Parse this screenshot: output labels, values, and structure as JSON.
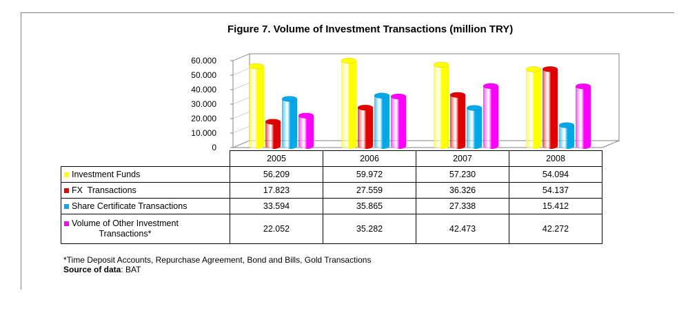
{
  "title": "Figure 7. Volume of Investment Transactions (million TRY)",
  "chart_data": {
    "type": "bar",
    "title": "Figure 7. Volume of Investment Transactions (million TRY)",
    "categories": [
      "2005",
      "2006",
      "2007",
      "2008"
    ],
    "ylim": [
      0,
      60000
    ],
    "yticks": [
      "0",
      "10.000",
      "20.000",
      "30.000",
      "40.000",
      "50.000",
      "60.000"
    ],
    "series": [
      {
        "name": "Investment Funds",
        "color": "#ffff00",
        "values": [
          56209,
          59972,
          57230,
          54094
        ],
        "labels": [
          "56.209",
          "59.972",
          "57.230",
          "54.094"
        ]
      },
      {
        "name": "FX  Transactions",
        "color": "#e00000",
        "values": [
          17823,
          27559,
          36326,
          54137
        ],
        "labels": [
          "17.823",
          "27.559",
          "36.326",
          "54.137"
        ]
      },
      {
        "name": "Share Certificate Transactions",
        "color": "#00a8e8",
        "values": [
          33594,
          35865,
          27338,
          15412
        ],
        "labels": [
          "33.594",
          "35.865",
          "27.338",
          "15.412"
        ]
      },
      {
        "name": "Volume of Other Investment Transactions*",
        "color": "#ff00ff",
        "values": [
          22052,
          35282,
          42473,
          42272
        ],
        "labels": [
          "22.052",
          "35.282",
          "42.473",
          "42.272"
        ]
      }
    ],
    "legend": "table-below",
    "grid": false
  },
  "table": {
    "row4_line1": "Volume of Other Investment",
    "row4_line2": "Transactions*"
  },
  "footnote": {
    "note": "*Time Deposit Accounts, Repurchase Agreement, Bond and Bills, Gold Transactions",
    "source_label": "Source of data",
    "source_value": ": BAT"
  }
}
